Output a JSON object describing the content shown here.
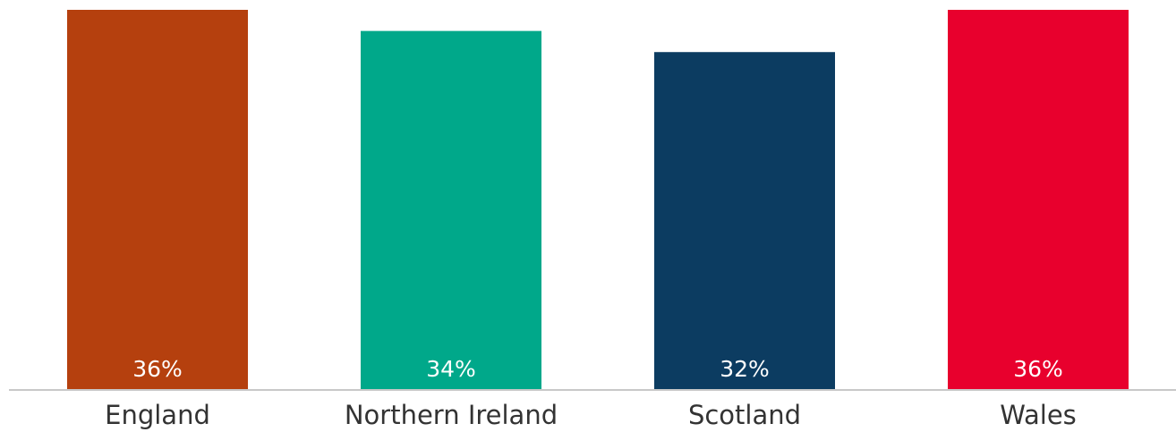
{
  "chart_data": {
    "type": "bar",
    "categories": [
      "England",
      "Northern Ireland",
      "Scotland",
      "Wales"
    ],
    "values": [
      36,
      34,
      32,
      36
    ],
    "value_labels": [
      "36%",
      "34%",
      "32%",
      "36%"
    ],
    "colors": [
      "#b5400e",
      "#00a88a",
      "#0c3c61",
      "#e8002d"
    ],
    "ylim": [
      0,
      36
    ]
  }
}
